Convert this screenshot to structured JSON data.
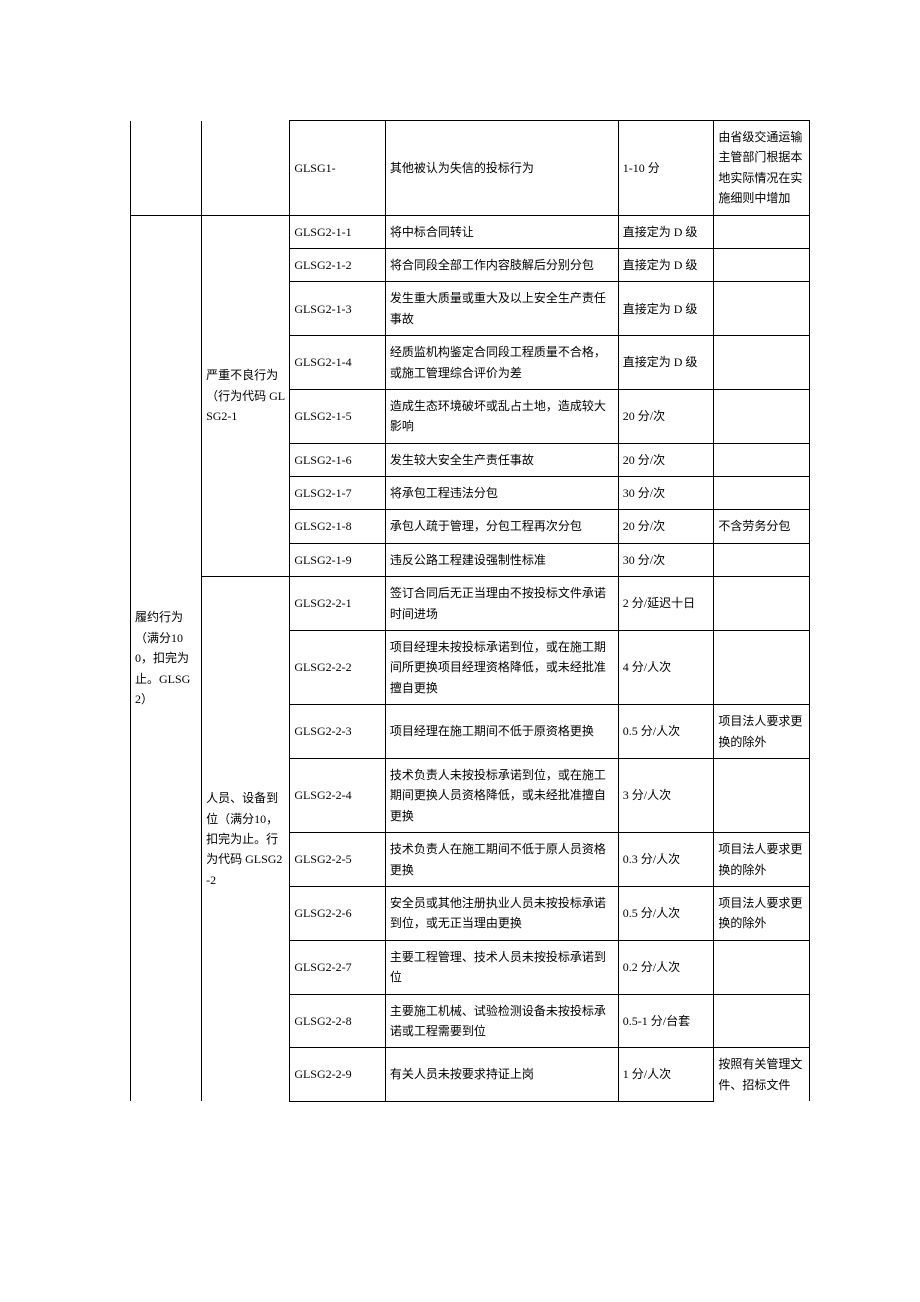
{
  "watermark": "",
  "categories": {
    "cat1": {
      "col1_blank": "",
      "col2_blank": ""
    },
    "cat2": {
      "title": "履约行为（满分100，扣完为止。GLSG2）",
      "sub1": "严重不良行为（行为代码 GLSG2-1",
      "sub2": "人员、设备到位（满分10，扣完为止。行为代码 GLSG2-2"
    }
  },
  "rows": [
    {
      "code": "GLSG1-",
      "desc": "其他被认为失信的投标行为",
      "score": "1-10 分",
      "note": "由省级交通运输主管部门根据本地实际情况在实施细则中增加"
    },
    {
      "code": "GLSG2-1-1",
      "desc": "将中标合同转让",
      "score": "直接定为 D 级",
      "note": ""
    },
    {
      "code": "GLSG2-1-2",
      "desc": "将合同段全部工作内容肢解后分别分包",
      "score": "直接定为 D 级",
      "note": ""
    },
    {
      "code": "GLSG2-1-3",
      "desc": "发生重大质量或重大及以上安全生产责任事故",
      "score": "直接定为 D 级",
      "note": ""
    },
    {
      "code": "GLSG2-1-4",
      "desc": "经质监机构鉴定合同段工程质量不合格，或施工管理综合评价为差",
      "score": "直接定为 D 级",
      "note": ""
    },
    {
      "code": "GLSG2-1-5",
      "desc": "造成生态环境破坏或乱占土地，造成较大影响",
      "score": "20 分/次",
      "note": ""
    },
    {
      "code": "GLSG2-1-6",
      "desc": "发生较大安全生产责任事故",
      "score": "20 分/次",
      "note": ""
    },
    {
      "code": "GLSG2-1-7",
      "desc": "将承包工程违法分包",
      "score": "30 分/次",
      "note": ""
    },
    {
      "code": "GLSG2-1-8",
      "desc": "承包人疏于管理，分包工程再次分包",
      "score": "20 分/次",
      "note": "不含劳务分包"
    },
    {
      "code": "GLSG2-1-9",
      "desc": "违反公路工程建设强制性标准",
      "score": "30 分/次",
      "note": ""
    },
    {
      "code": "GLSG2-2-1",
      "desc": "签订合同后无正当理由不按投标文件承诺时间进场",
      "score": "2 分/延迟十日",
      "note": ""
    },
    {
      "code": "GLSG2-2-2",
      "desc": "项目经理未按投标承诺到位，或在施工期间所更换项目经理资格降低，或未经批准擅自更换",
      "score": "4 分/人次",
      "note": ""
    },
    {
      "code": "GLSG2-2-3",
      "desc": "项目经理在施工期间不低于原资格更换",
      "score": "0.5 分/人次",
      "note": "项目法人要求更换的除外"
    },
    {
      "code": "GLSG2-2-4",
      "desc": "技术负责人未按投标承诺到位，或在施工期间更换人员资格降低，或未经批准擅自更换",
      "score": "3 分/人次",
      "note": ""
    },
    {
      "code": "GLSG2-2-5",
      "desc": "技术负责人在施工期间不低于原人员资格更换",
      "score": "0.3 分/人次",
      "note": "项目法人要求更换的除外"
    },
    {
      "code": "GLSG2-2-6",
      "desc": "安全员或其他注册执业人员未按投标承诺到位，或无正当理由更换",
      "score": "0.5 分/人次",
      "note": "项目法人要求更换的除外"
    },
    {
      "code": "GLSG2-2-7",
      "desc": "主要工程管理、技术人员未按投标承诺到位",
      "score": "0.2 分/人次",
      "note": ""
    },
    {
      "code": "GLSG2-2-8",
      "desc": "主要施工机械、试验检测设备未按投标承诺或工程需要到位",
      "score": "0.5-1 分/台套",
      "note": ""
    },
    {
      "code": "GLSG2-2-9",
      "desc": "有关人员未按要求持证上岗",
      "score": "1 分/人次",
      "note": "按照有关管理文件、招标文件"
    }
  ]
}
